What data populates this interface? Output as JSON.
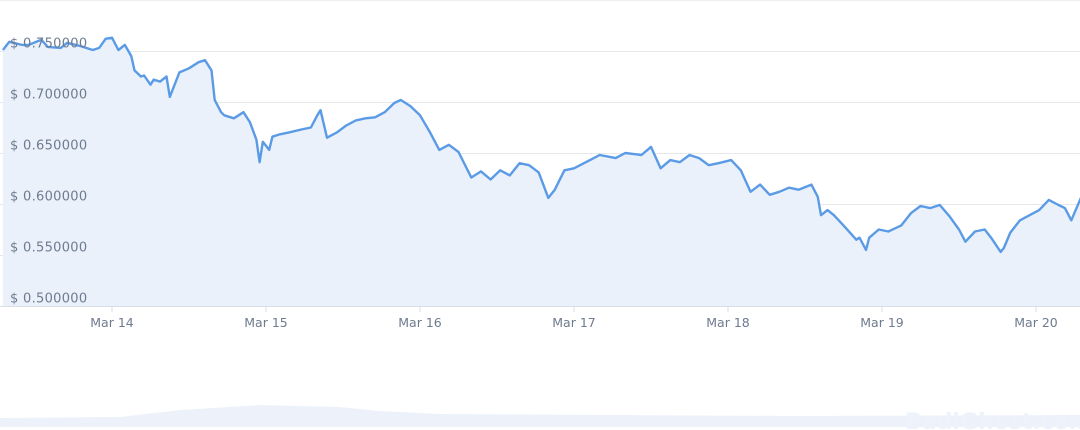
{
  "chart_data": {
    "type": "area",
    "title": "",
    "xlabel": "",
    "ylabel": "",
    "ylim": [
      0.5,
      0.75
    ],
    "grid": true,
    "legend": "none",
    "line_color": "#5b9be6",
    "fill_color": "#eaf1fb",
    "y_ticks": [
      "$ 0.500000",
      "$ 0.550000",
      "$ 0.600000",
      "$ 0.650000",
      "$ 0.700000",
      "$ 0.750000"
    ],
    "y_tick_values": [
      0.5,
      0.55,
      0.6,
      0.65,
      0.7,
      0.75
    ],
    "x_ticks": [
      "Mar 14",
      "Mar 15",
      "Mar 16",
      "Mar 17",
      "Mar 18",
      "Mar 19",
      "Mar 20"
    ],
    "series": [
      {
        "points": [
          [
            "Mar 13 07:00",
            0.751
          ],
          [
            "Mar 13 08:00",
            0.759
          ],
          [
            "Mar 13 10:00",
            0.756
          ],
          [
            "Mar 13 11:00",
            0.756
          ],
          [
            "Mar 13 13:00",
            0.761
          ],
          [
            "Mar 13 14:00",
            0.754
          ],
          [
            "Mar 13 16:00",
            0.753
          ],
          [
            "Mar 13 17:00",
            0.758
          ],
          [
            "Mar 13 19:00",
            0.755
          ],
          [
            "Mar 13 21:00",
            0.751
          ],
          [
            "Mar 13 22:00",
            0.753
          ],
          [
            "Mar 13 23:00",
            0.762
          ],
          [
            "Mar 14 00:00",
            0.763
          ],
          [
            "Mar 14 01:00",
            0.751
          ],
          [
            "Mar 14 02:00",
            0.756
          ],
          [
            "Mar 14 03:00",
            0.745
          ],
          [
            "Mar 14 03:30",
            0.731
          ],
          [
            "Mar 14 04:30",
            0.725
          ],
          [
            "Mar 14 05:00",
            0.726
          ],
          [
            "Mar 14 06:00",
            0.717
          ],
          [
            "Mar 14 06:30",
            0.722
          ],
          [
            "Mar 14 07:30",
            0.72
          ],
          [
            "Mar 14 08:30",
            0.725
          ],
          [
            "Mar 14 09:00",
            0.705
          ],
          [
            "Mar 14 10:30",
            0.729
          ],
          [
            "Mar 14 12:00",
            0.733
          ],
          [
            "Mar 14 13:30",
            0.739
          ],
          [
            "Mar 14 14:30",
            0.741
          ],
          [
            "Mar 14 15:30",
            0.731
          ],
          [
            "Mar 14 16:00",
            0.702
          ],
          [
            "Mar 14 17:00",
            0.69
          ],
          [
            "Mar 14 17:30",
            0.687
          ],
          [
            "Mar 14 19:00",
            0.684
          ],
          [
            "Mar 14 20:30",
            0.69
          ],
          [
            "Mar 14 21:30",
            0.68
          ],
          [
            "Mar 14 22:30",
            0.663
          ],
          [
            "Mar 14 23:00",
            0.641
          ],
          [
            "Mar 14 23:30",
            0.661
          ],
          [
            "Mar 15 00:30",
            0.653
          ],
          [
            "Mar 15 01:00",
            0.666
          ],
          [
            "Mar 15 02:00",
            0.668
          ],
          [
            "Mar 15 03:30",
            0.67
          ],
          [
            "Mar 15 05:30",
            0.673
          ],
          [
            "Mar 15 07:00",
            0.675
          ],
          [
            "Mar 15 08:00",
            0.687
          ],
          [
            "Mar 15 08:30",
            0.692
          ],
          [
            "Mar 15 09:30",
            0.665
          ],
          [
            "Mar 15 11:00",
            0.67
          ],
          [
            "Mar 15 12:30",
            0.677
          ],
          [
            "Mar 15 14:00",
            0.682
          ],
          [
            "Mar 15 15:30",
            0.684
          ],
          [
            "Mar 15 17:00",
            0.685
          ],
          [
            "Mar 15 18:30",
            0.69
          ],
          [
            "Mar 15 20:00",
            0.699
          ],
          [
            "Mar 15 21:00",
            0.702
          ],
          [
            "Mar 15 22:30",
            0.696
          ],
          [
            "Mar 16 00:00",
            0.687
          ],
          [
            "Mar 16 01:30",
            0.671
          ],
          [
            "Mar 16 03:00",
            0.653
          ],
          [
            "Mar 16 04:30",
            0.658
          ],
          [
            "Mar 16 06:00",
            0.651
          ],
          [
            "Mar 16 08:00",
            0.626
          ],
          [
            "Mar 16 09:30",
            0.632
          ],
          [
            "Mar 16 11:00",
            0.624
          ],
          [
            "Mar 16 12:30",
            0.633
          ],
          [
            "Mar 16 14:00",
            0.628
          ],
          [
            "Mar 16 15:30",
            0.64
          ],
          [
            "Mar 16 17:00",
            0.638
          ],
          [
            "Mar 16 18:30",
            0.631
          ],
          [
            "Mar 16 20:00",
            0.606
          ],
          [
            "Mar 16 21:00",
            0.614
          ],
          [
            "Mar 16 22:30",
            0.633
          ],
          [
            "Mar 17 00:00",
            0.635
          ],
          [
            "Mar 17 02:30",
            0.643
          ],
          [
            "Mar 17 04:00",
            0.648
          ],
          [
            "Mar 17 06:30",
            0.645
          ],
          [
            "Mar 17 08:00",
            0.65
          ],
          [
            "Mar 17 10:30",
            0.648
          ],
          [
            "Mar 17 12:00",
            0.656
          ],
          [
            "Mar 17 13:30",
            0.635
          ],
          [
            "Mar 17 15:00",
            0.643
          ],
          [
            "Mar 17 16:30",
            0.641
          ],
          [
            "Mar 17 18:00",
            0.648
          ],
          [
            "Mar 17 19:30",
            0.645
          ],
          [
            "Mar 17 21:00",
            0.638
          ],
          [
            "Mar 17 22:30",
            0.64
          ],
          [
            "Mar 18 00:30",
            0.643
          ],
          [
            "Mar 18 02:00",
            0.633
          ],
          [
            "Mar 18 03:30",
            0.612
          ],
          [
            "Mar 18 05:00",
            0.619
          ],
          [
            "Mar 18 06:30",
            0.609
          ],
          [
            "Mar 18 08:00",
            0.612
          ],
          [
            "Mar 18 09:30",
            0.616
          ],
          [
            "Mar 18 11:00",
            0.614
          ],
          [
            "Mar 18 13:00",
            0.619
          ],
          [
            "Mar 18 14:00",
            0.607
          ],
          [
            "Mar 18 14:30",
            0.589
          ],
          [
            "Mar 18 15:30",
            0.594
          ],
          [
            "Mar 18 16:30",
            0.589
          ],
          [
            "Mar 18 18:00",
            0.579
          ],
          [
            "Mar 18 20:00",
            0.565
          ],
          [
            "Mar 18 20:30",
            0.567
          ],
          [
            "Mar 18 21:30",
            0.555
          ],
          [
            "Mar 18 22:00",
            0.567
          ],
          [
            "Mar 18 23:30",
            0.575
          ],
          [
            "Mar 19 01:00",
            0.573
          ],
          [
            "Mar 19 03:00",
            0.579
          ],
          [
            "Mar 19 04:30",
            0.591
          ],
          [
            "Mar 19 06:00",
            0.598
          ],
          [
            "Mar 19 07:30",
            0.596
          ],
          [
            "Mar 19 09:00",
            0.599
          ],
          [
            "Mar 19 10:30",
            0.588
          ],
          [
            "Mar 19 12:00",
            0.575
          ],
          [
            "Mar 19 13:00",
            0.563
          ],
          [
            "Mar 19 14:30",
            0.573
          ],
          [
            "Mar 19 16:00",
            0.575
          ],
          [
            "Mar 19 17:00",
            0.567
          ],
          [
            "Mar 19 18:30",
            0.553
          ],
          [
            "Mar 19 19:00",
            0.557
          ],
          [
            "Mar 19 20:00",
            0.572
          ],
          [
            "Mar 19 21:30",
            0.584
          ],
          [
            "Mar 19 23:00",
            0.589
          ],
          [
            "Mar 20 00:30",
            0.594
          ],
          [
            "Mar 20 02:00",
            0.604
          ],
          [
            "Mar 20 03:30",
            0.599
          ],
          [
            "Mar 20 04:30",
            0.596
          ],
          [
            "Mar 20 05:30",
            0.584
          ],
          [
            "Mar 20 07:00",
            0.606
          ]
        ]
      }
    ]
  },
  "watermark": "BadiGhost.com"
}
